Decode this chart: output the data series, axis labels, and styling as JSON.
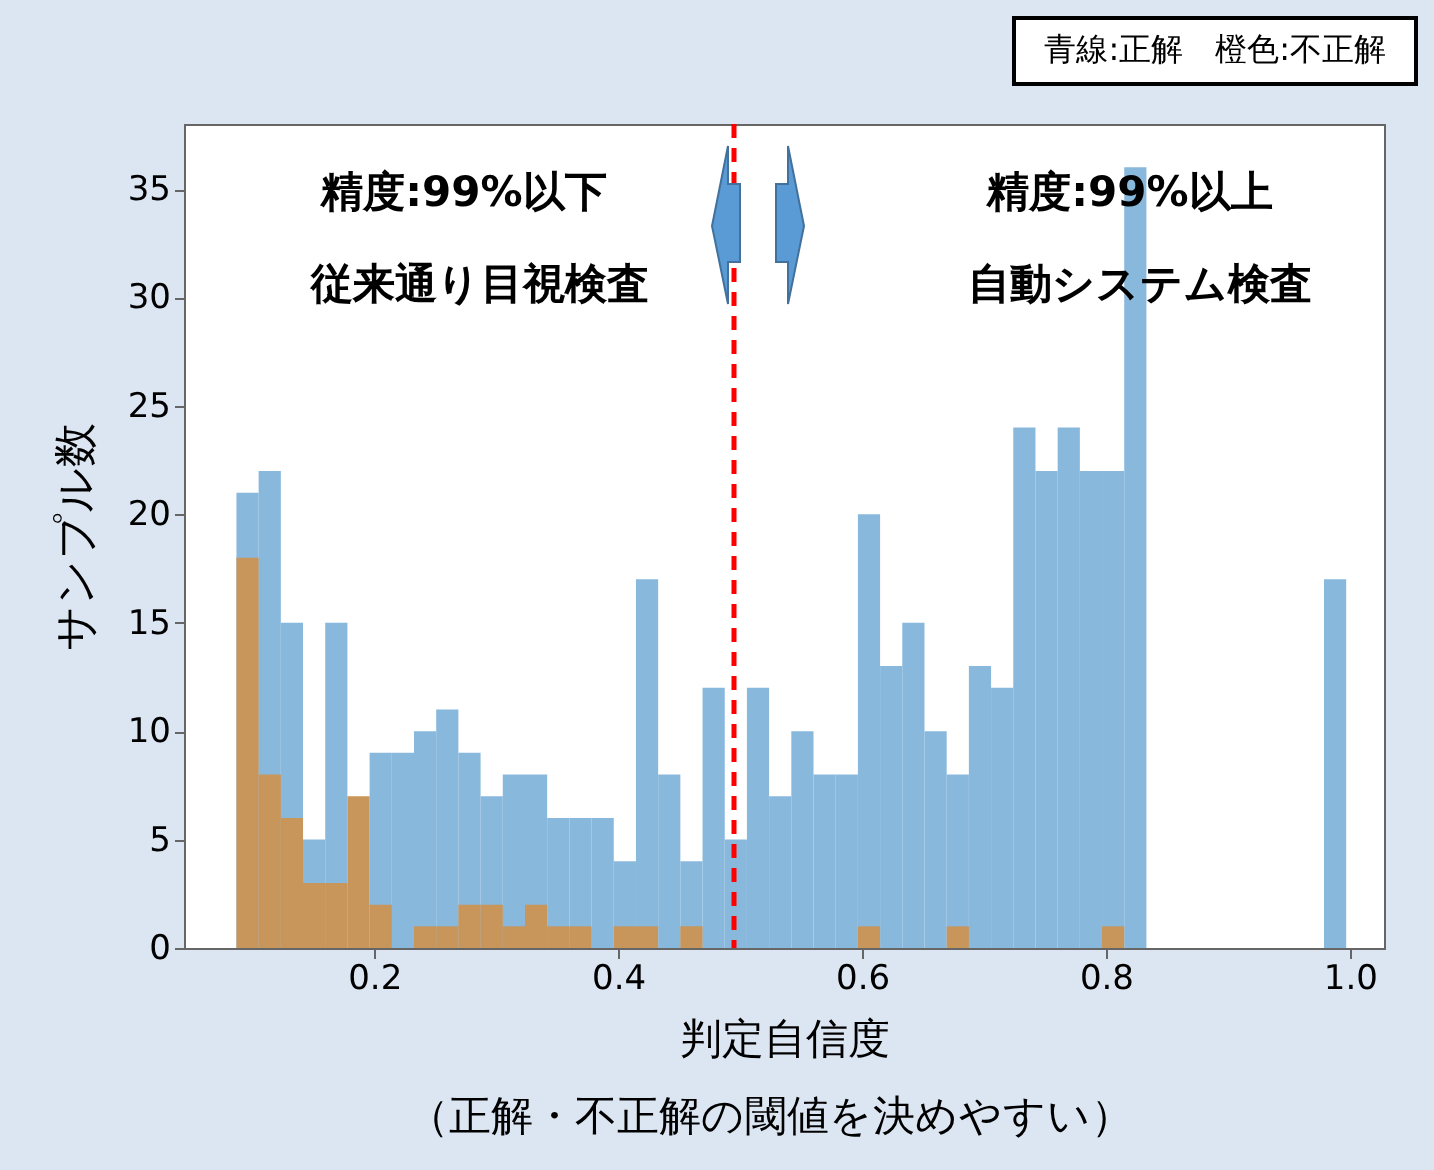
{
  "chart_data": {
    "type": "histogram",
    "xlabel": "判定自信度",
    "ylabel": "サンプル数",
    "annotations": [
      "精度:99%以下",
      "従来通り目視検査",
      "精度:99%以上",
      "自動システム検査",
      "青線:正解　橙色:不正解",
      "（正解・不正解の閾値を決めやすい）"
    ],
    "bins": [
      0.087,
      0.1052,
      0.1234,
      0.1416,
      0.1598,
      0.178,
      0.1962,
      0.2144,
      0.2326,
      0.2508,
      0.269,
      0.2872,
      0.3054,
      0.3236,
      0.3418,
      0.36,
      0.3782,
      0.3964,
      0.4146,
      0.4328,
      0.451,
      0.4692,
      0.4874,
      0.5056,
      0.5238,
      0.542,
      0.5602,
      0.5784,
      0.5966,
      0.6148,
      0.633,
      0.6512,
      0.6694,
      0.6876,
      0.7058,
      0.724,
      0.7422,
      0.7604,
      0.7786,
      0.7968,
      0.815,
      0.8332,
      0.9788,
      0.997
    ],
    "series": [
      {
        "color": "#88b8dc",
        "values": [
          21,
          22,
          15,
          5,
          15,
          null,
          9,
          9,
          10,
          11,
          9,
          7,
          8,
          8,
          6,
          6,
          6,
          4,
          17,
          8,
          4,
          12,
          5,
          12,
          7,
          10,
          8,
          8,
          20,
          13,
          15,
          10,
          8,
          13,
          12,
          24,
          22,
          24,
          22,
          22,
          36,
          0,
          17
        ]
      },
      {
        "color": "#c8955a",
        "values": [
          18,
          8,
          6,
          3,
          3,
          7,
          2,
          0,
          1,
          1,
          2,
          2,
          1,
          2,
          1,
          1,
          0,
          1,
          1,
          0,
          1,
          0,
          0,
          0,
          0,
          0,
          0,
          0,
          1,
          0,
          0,
          0,
          1,
          0,
          0,
          0,
          0,
          0,
          0,
          1,
          0,
          0,
          0
        ]
      }
    ],
    "xlim": [
      0.044,
      1.028
    ],
    "xticks": [
      0.2,
      0.4,
      0.6,
      0.8,
      {
        "value": 1,
        "label": "1.0"
      }
    ],
    "ylim": [
      0,
      38
    ],
    "yticks": [
      0,
      5,
      10,
      15,
      20,
      25,
      30,
      35
    ],
    "ref_lines": [
      {
        "axis": "x",
        "value": 0.495,
        "color": "#ff0000",
        "line_style": "dashed"
      }
    ]
  }
}
